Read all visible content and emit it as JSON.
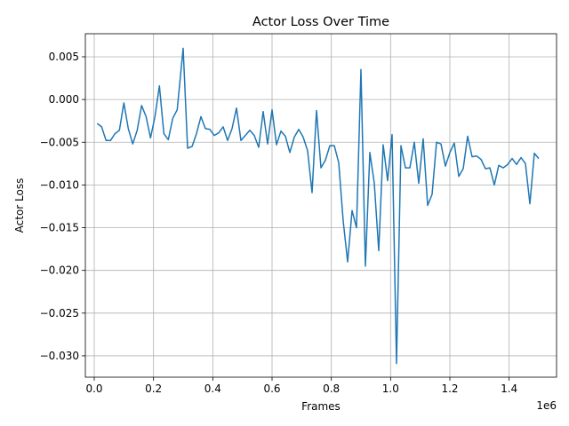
{
  "chart_data": {
    "type": "line",
    "title": "Actor Loss Over Time",
    "xlabel": "Frames",
    "ylabel": "Actor Loss",
    "x_scale_label": "1e6",
    "x_scale": 1000000,
    "xlim": [
      -30000,
      1560000
    ],
    "ylim": [
      -0.0325,
      0.0077
    ],
    "xticks": [
      0,
      200000,
      400000,
      600000,
      800000,
      1000000,
      1200000,
      1400000
    ],
    "xtick_labels": [
      "0.0",
      "0.2",
      "0.4",
      "0.6",
      "0.8",
      "1.0",
      "1.2",
      "1.4"
    ],
    "yticks": [
      0.005,
      0.0,
      -0.005,
      -0.01,
      -0.015,
      -0.02,
      -0.025,
      -0.03
    ],
    "ytick_labels": [
      "0.005",
      "0.000",
      "−0.005",
      "−0.010",
      "−0.015",
      "−0.020",
      "−0.025",
      "−0.030"
    ],
    "grid": true,
    "line_color": "#1f77b4",
    "series": [
      {
        "x": [
          10000,
          25000,
          40000,
          55000,
          70000,
          85000,
          100000,
          115000,
          130000,
          145000,
          160000,
          175000,
          190000,
          205000,
          220000,
          235000,
          250000,
          265000,
          280000,
          300000,
          315000,
          330000,
          345000,
          360000,
          375000,
          390000,
          405000,
          420000,
          435000,
          450000,
          465000,
          480000,
          495000,
          510000,
          525000,
          540000,
          555000,
          570000,
          585000,
          600000,
          615000,
          630000,
          645000,
          660000,
          675000,
          690000,
          705000,
          720000,
          735000,
          750000,
          765000,
          780000,
          795000,
          810000,
          825000,
          840000,
          855000,
          870000,
          885000,
          900000,
          915000,
          930000,
          945000,
          960000,
          975000,
          990000,
          1005000,
          1020000,
          1035000,
          1050000,
          1065000,
          1080000,
          1095000,
          1110000,
          1125000,
          1140000,
          1155000,
          1170000,
          1185000,
          1200000,
          1215000,
          1230000,
          1245000,
          1260000,
          1275000,
          1290000,
          1305000,
          1320000,
          1335000,
          1350000,
          1365000,
          1380000,
          1395000,
          1410000,
          1425000,
          1440000,
          1455000,
          1470000,
          1485000,
          1500000
        ],
        "y": [
          -0.0028,
          -0.0032,
          -0.0048,
          -0.0048,
          -0.004,
          -0.0036,
          -0.0004,
          -0.0034,
          -0.0052,
          -0.0036,
          -0.0007,
          -0.002,
          -0.0045,
          -0.002,
          0.0016,
          -0.004,
          -0.0047,
          -0.0022,
          -0.0012,
          0.006,
          -0.0057,
          -0.0055,
          -0.004,
          -0.002,
          -0.0034,
          -0.0035,
          -0.0042,
          -0.0039,
          -0.0032,
          -0.0048,
          -0.0034,
          -0.001,
          -0.0048,
          -0.0042,
          -0.0036,
          -0.0042,
          -0.0056,
          -0.0014,
          -0.0052,
          -0.0012,
          -0.0053,
          -0.0037,
          -0.0043,
          -0.0062,
          -0.0044,
          -0.0035,
          -0.0044,
          -0.006,
          -0.0109,
          -0.0013,
          -0.008,
          -0.0071,
          -0.0054,
          -0.0054,
          -0.0074,
          -0.0142,
          -0.019,
          -0.013,
          -0.015,
          0.0035,
          -0.0195,
          -0.0062,
          -0.0098,
          -0.0177,
          -0.0053,
          -0.0095,
          -0.0041,
          -0.0309,
          -0.0054,
          -0.008,
          -0.008,
          -0.005,
          -0.0098,
          -0.0046,
          -0.0124,
          -0.0111,
          -0.005,
          -0.0052,
          -0.0078,
          -0.0062,
          -0.0051,
          -0.009,
          -0.0081,
          -0.0043,
          -0.0067,
          -0.0066,
          -0.007,
          -0.0081,
          -0.008,
          -0.01,
          -0.0077,
          -0.008,
          -0.0076,
          -0.0069,
          -0.0076,
          -0.0068,
          -0.0075,
          -0.0122,
          -0.0063,
          -0.0069
        ]
      }
    ]
  }
}
